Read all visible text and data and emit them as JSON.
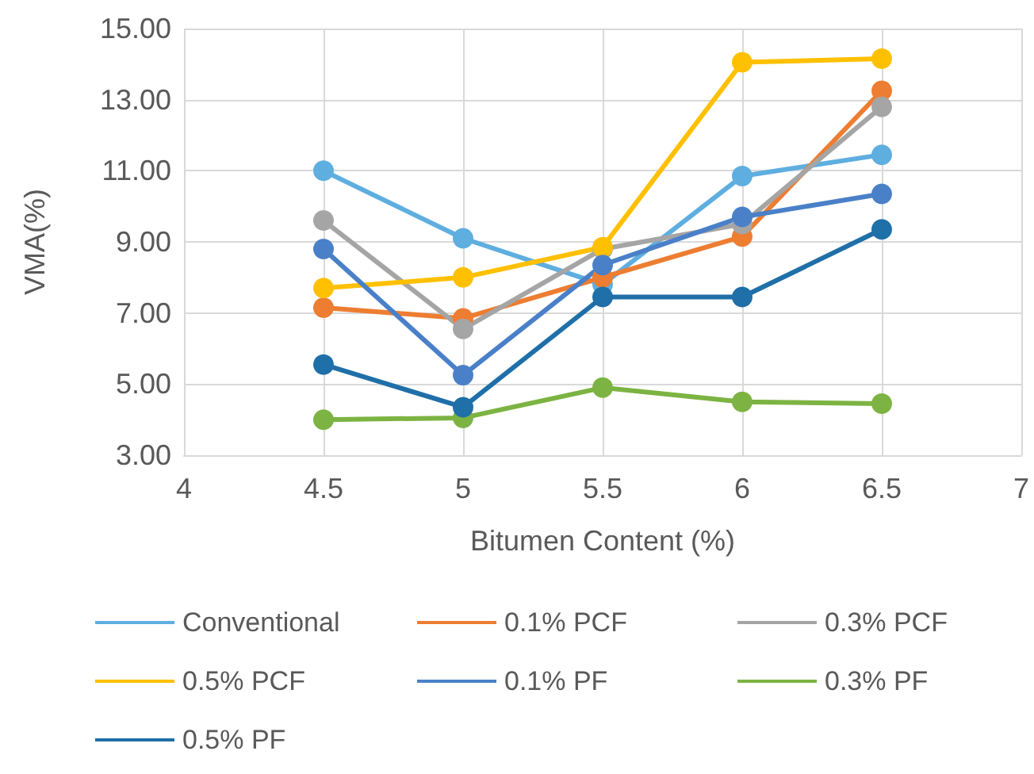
{
  "chart_data": {
    "type": "line",
    "xlabel": "Bitumen Content (%)",
    "ylabel": "VMA(%)",
    "x": [
      4.5,
      5,
      5.5,
      6,
      6.5
    ],
    "series": [
      {
        "name": "Conventional",
        "color": "#5eaee0",
        "values": [
          11.0,
          9.1,
          7.8,
          10.85,
          11.45
        ]
      },
      {
        "name": "0.1% PCF",
        "color": "#ed7d31",
        "values": [
          7.15,
          6.85,
          8.0,
          9.15,
          13.25
        ]
      },
      {
        "name": "0.3% PCF",
        "color": "#a5a5a5",
        "values": [
          9.6,
          6.55,
          8.8,
          9.5,
          12.8
        ]
      },
      {
        "name": "0.5% PCF",
        "color": "#ffc000",
        "values": [
          7.7,
          8.0,
          8.85,
          14.05,
          14.15
        ]
      },
      {
        "name": "0.1% PF",
        "color": "#4a80c8",
        "values": [
          8.8,
          5.25,
          8.35,
          9.7,
          10.35
        ]
      },
      {
        "name": "0.3% PF",
        "color": "#7cb342",
        "values": [
          4.0,
          4.05,
          4.9,
          4.5,
          4.45
        ]
      },
      {
        "name": "0.5% PF",
        "color": "#1f6fa8",
        "values": [
          5.55,
          4.35,
          7.45,
          7.45,
          9.35
        ]
      }
    ],
    "xlim": [
      4,
      7
    ],
    "xticks": [
      4,
      4.5,
      5,
      5.5,
      6,
      6.5,
      7
    ],
    "ylim": [
      3,
      15
    ],
    "yticks": [
      {
        "value": 3,
        "label": "3.00"
      },
      {
        "value": 5,
        "label": "5.00"
      },
      {
        "value": 7,
        "label": "7.00"
      },
      {
        "value": 9,
        "label": "9.00"
      },
      {
        "value": 11,
        "label": "11.00"
      },
      {
        "value": 13,
        "label": "13.00"
      },
      {
        "value": 15,
        "label": "15.00"
      }
    ],
    "grid": true,
    "legend": "bottom",
    "marker": "circle",
    "line_style": "solid"
  }
}
